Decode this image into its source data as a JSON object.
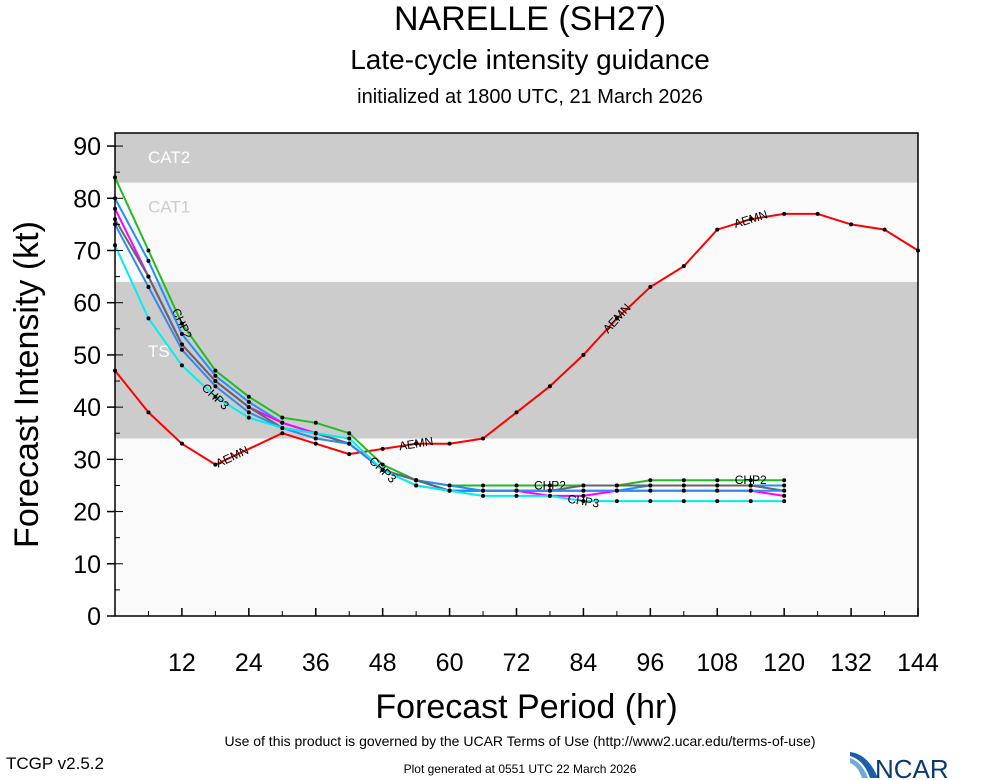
{
  "header": {
    "title": "NARELLE (SH27)",
    "subtitle": "Late-cycle intensity guidance",
    "initialized": "initialized at 1800 UTC, 21 March 2026"
  },
  "footer": {
    "terms": "Use of this product is governed by the UCAR Terms of Use (http://www2.ucar.edu/terms-of-use)",
    "generated": "Plot generated at 0551 UTC   22 March 2026",
    "version": "TCGP v2.5.2",
    "logo": "NCAR"
  },
  "chart_data": {
    "type": "line",
    "xlabel": "Forecast Period (hr)",
    "ylabel": "Forecast Intensity (kt)",
    "xlim": [
      0,
      144
    ],
    "ylim": [
      0,
      92.5
    ],
    "xticks": [
      12,
      24,
      36,
      48,
      60,
      72,
      84,
      96,
      108,
      120,
      132,
      144
    ],
    "yticks": [
      0,
      10,
      20,
      30,
      40,
      50,
      60,
      70,
      80,
      90
    ],
    "bands": [
      {
        "label": "TS",
        "from": 34,
        "to": 64,
        "color": "#cccccc"
      },
      {
        "label": "CAT1",
        "from": 64,
        "to": 83,
        "color": "#fafafa"
      },
      {
        "label": "CAT2",
        "from": 83,
        "to": 92.5,
        "color": "#cccccc"
      }
    ],
    "below_color": "#fafafa",
    "series": [
      {
        "name": "AEMN",
        "color": "#ff0000",
        "x": [
          0,
          6,
          12,
          18,
          30,
          36,
          42,
          48,
          54,
          60,
          66,
          72,
          78,
          84,
          90,
          96,
          102,
          108,
          114,
          120,
          126,
          132,
          138,
          144
        ],
        "values": [
          47,
          39,
          33,
          29,
          35,
          33,
          31,
          32,
          33,
          33,
          34,
          39,
          44,
          50,
          57,
          63,
          67,
          74,
          76,
          77,
          77,
          75,
          74,
          70
        ],
        "label_at": [
          21,
          54,
          90,
          114
        ]
      },
      {
        "name": "CHP2",
        "color": "#22bb22",
        "x": [
          0,
          6,
          12,
          18,
          24,
          30,
          36,
          42,
          48,
          54,
          60,
          66,
          72,
          78,
          84,
          90,
          96,
          102,
          108,
          114,
          120
        ],
        "values": [
          84,
          70,
          56,
          47,
          42,
          38,
          37,
          35,
          29,
          26,
          25,
          25,
          25,
          25,
          25,
          25,
          26,
          26,
          26,
          26,
          26
        ],
        "label_at": [
          12,
          78,
          114
        ]
      },
      {
        "name": "",
        "color": "#1e90ff",
        "x": [
          0,
          6,
          12,
          18,
          24,
          30,
          36,
          42,
          48,
          54,
          60,
          66,
          72,
          78,
          84,
          90,
          96,
          102,
          108,
          114,
          120
        ],
        "values": [
          80,
          68,
          54,
          46,
          41,
          37,
          35,
          33,
          28,
          26,
          25,
          24,
          24,
          24,
          24,
          24,
          25,
          25,
          25,
          25,
          25
        ],
        "label_at": []
      },
      {
        "name": "",
        "color": "#ff00ff",
        "x": [
          0,
          6,
          12,
          18,
          24,
          30,
          36,
          42,
          48,
          54,
          60,
          66,
          72,
          78,
          84,
          90,
          96,
          102,
          108,
          114,
          120
        ],
        "values": [
          78,
          65,
          52,
          45,
          40,
          37,
          35,
          33,
          28,
          26,
          24,
          24,
          24,
          23,
          23,
          24,
          24,
          24,
          24,
          24,
          23
        ],
        "label_at": []
      },
      {
        "name": "",
        "color": "#666666",
        "x": [
          0,
          6,
          12,
          18,
          24,
          30,
          36,
          42,
          48,
          54,
          60,
          66,
          72,
          78,
          84,
          90,
          96,
          102,
          108,
          114,
          120
        ],
        "values": [
          76,
          65,
          52,
          45,
          40,
          36,
          35,
          33,
          28,
          26,
          24,
          24,
          24,
          24,
          25,
          25,
          25,
          25,
          25,
          25,
          24
        ],
        "label_at": []
      },
      {
        "name": "",
        "color": "#3388ee",
        "x": [
          0,
          6,
          12,
          18,
          24,
          30,
          36,
          42,
          48,
          54,
          60,
          66,
          72,
          78,
          84,
          90,
          96,
          102,
          108,
          114,
          120
        ],
        "values": [
          75,
          63,
          51,
          44,
          39,
          36,
          34,
          33,
          28,
          25,
          24,
          24,
          24,
          24,
          24,
          24,
          24,
          24,
          24,
          24,
          24
        ],
        "label_at": []
      },
      {
        "name": "CHP3",
        "color": "#00eeee",
        "x": [
          0,
          6,
          12,
          18,
          24,
          30,
          36,
          42,
          48,
          54,
          60,
          66,
          72,
          78,
          84,
          90,
          96,
          102,
          108,
          114,
          120
        ],
        "values": [
          71,
          57,
          48,
          42,
          38,
          36,
          35,
          34,
          28,
          25,
          24,
          23,
          23,
          23,
          22,
          22,
          22,
          22,
          22,
          22,
          22
        ],
        "label_at": [
          18,
          48,
          84
        ]
      }
    ]
  }
}
